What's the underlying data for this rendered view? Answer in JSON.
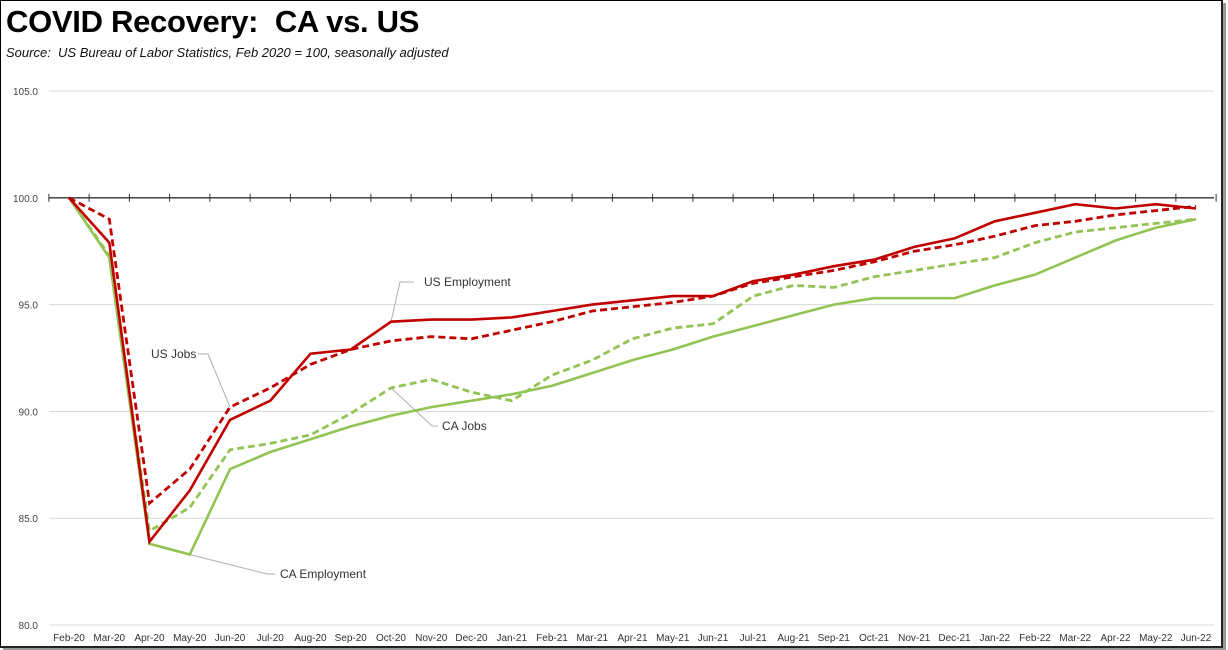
{
  "chart_data": {
    "type": "line",
    "title": "COVID Recovery:  CA vs. US",
    "subtitle": "Source:  US Bureau of Labor Statistics, Feb 2020 = 100, seasonally adjusted",
    "xlabel": "",
    "ylabel": "",
    "ylim": [
      80,
      105
    ],
    "yticks": [
      "80.0",
      "85.0",
      "90.0",
      "95.0",
      "100.0",
      "105.0"
    ],
    "ytick_values": [
      80,
      85,
      90,
      95,
      100,
      105
    ],
    "grid": true,
    "reference_line": 100,
    "categories": [
      "Feb-20",
      "Mar-20",
      "Apr-20",
      "May-20",
      "Jun-20",
      "Jul-20",
      "Aug-20",
      "Sep-20",
      "Oct-20",
      "Nov-20",
      "Dec-20",
      "Jan-21",
      "Feb-21",
      "Mar-21",
      "Apr-21",
      "May-21",
      "Jun-21",
      "Jul-21",
      "Aug-21",
      "Sep-21",
      "Oct-21",
      "Nov-21",
      "Dec-21",
      "Jan-22",
      "Feb-22",
      "Mar-22",
      "Apr-22",
      "May-22",
      "Jun-22"
    ],
    "series": [
      {
        "name": "US Employment",
        "color": "#c00000",
        "style": "solid",
        "values": [
          100.0,
          97.9,
          83.9,
          86.3,
          89.6,
          90.5,
          92.7,
          92.9,
          94.2,
          94.3,
          94.3,
          94.4,
          94.7,
          95.0,
          95.2,
          95.4,
          95.4,
          96.1,
          96.4,
          96.8,
          97.1,
          97.7,
          98.1,
          98.9,
          99.3,
          99.7,
          99.5,
          99.7,
          99.5
        ]
      },
      {
        "name": "US Jobs",
        "color": "#c00000",
        "style": "dashed",
        "values": [
          100.0,
          99.0,
          85.7,
          87.3,
          90.2,
          91.1,
          92.2,
          92.9,
          93.3,
          93.5,
          93.4,
          93.8,
          94.2,
          94.7,
          94.9,
          95.1,
          95.4,
          96.0,
          96.3,
          96.6,
          97.0,
          97.5,
          97.8,
          98.2,
          98.7,
          98.9,
          99.2,
          99.4,
          99.6
        ]
      },
      {
        "name": "CA Jobs",
        "color": "#92c353",
        "style": "dashed",
        "values": [
          100.0,
          97.3,
          84.4,
          85.5,
          88.2,
          88.5,
          88.9,
          89.9,
          91.1,
          91.5,
          90.9,
          90.5,
          91.7,
          92.4,
          93.4,
          93.9,
          94.1,
          95.4,
          95.9,
          95.8,
          96.3,
          96.6,
          96.9,
          97.2,
          97.9,
          98.4,
          98.6,
          98.8,
          99.0
        ]
      },
      {
        "name": "CA Employment",
        "color": "#92c353",
        "style": "solid",
        "values": [
          100.0,
          97.2,
          83.8,
          83.3,
          87.3,
          88.1,
          88.7,
          89.3,
          89.8,
          90.2,
          90.5,
          90.8,
          91.2,
          91.8,
          92.4,
          92.9,
          93.5,
          94.0,
          94.5,
          95.0,
          95.3,
          95.3,
          95.3,
          95.9,
          96.4,
          97.2,
          98.0,
          98.6,
          99.0
        ]
      }
    ],
    "annotations": [
      {
        "text": "US Employment",
        "series": "US Employment",
        "point": "Oct-20"
      },
      {
        "text": "US Jobs",
        "series": "US Jobs",
        "point": "Jun-20"
      },
      {
        "text": "CA Jobs",
        "series": "CA Jobs",
        "point": "Oct-20"
      },
      {
        "text": "CA Employment",
        "series": "CA Employment",
        "point": "May-20"
      }
    ],
    "legend": "none (inline annotations)"
  }
}
